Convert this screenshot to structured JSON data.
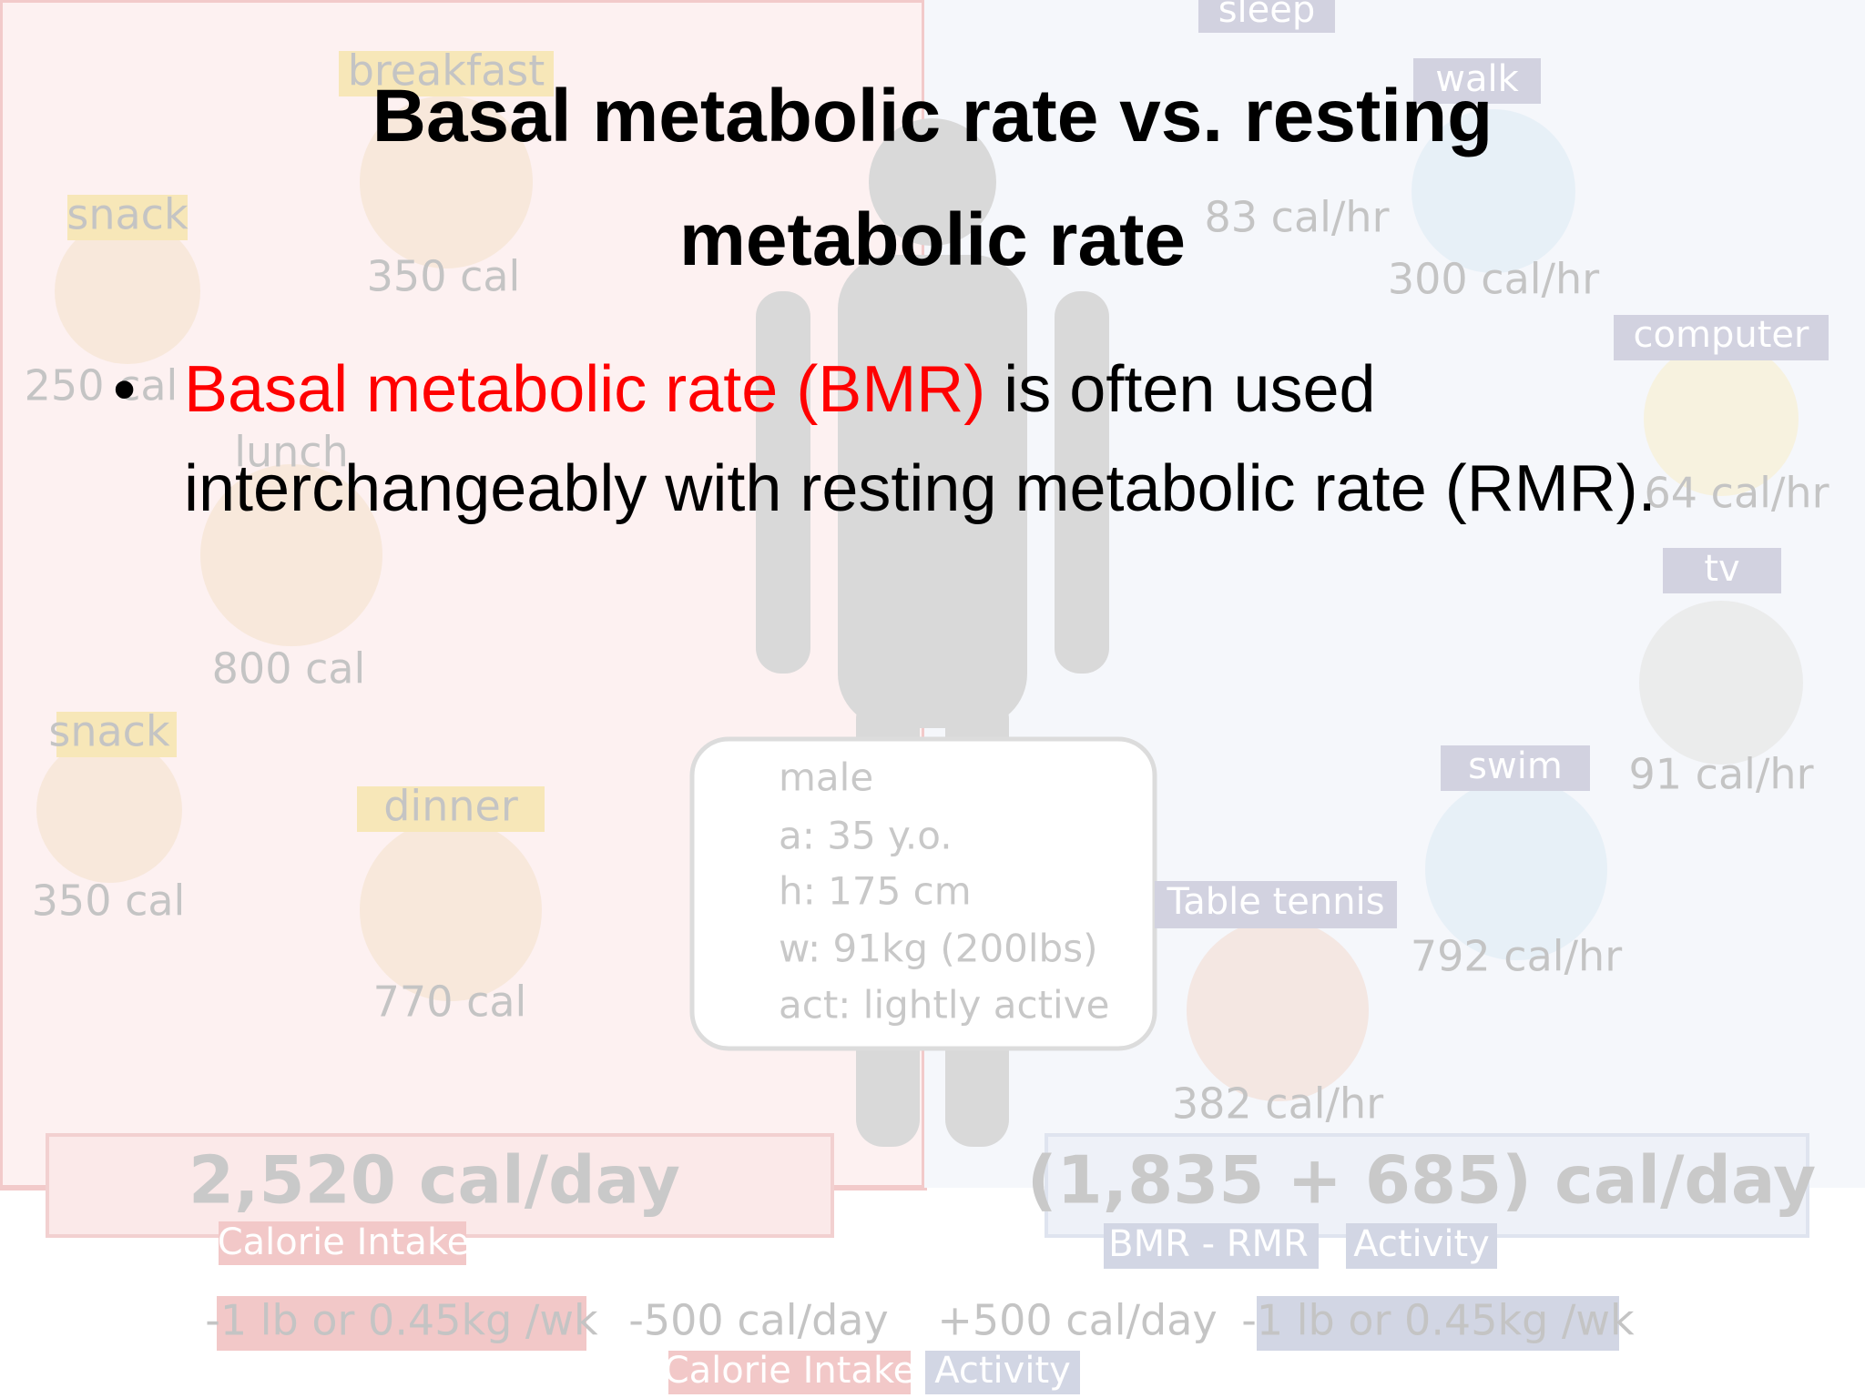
{
  "title": "Basal metabolic rate vs. resting metabolic rate",
  "bullet": {
    "highlight": "Basal metabolic rate (BMR)",
    "text": "is often used interchangeably with resting metabolic rate (RMR)."
  },
  "background": {
    "activities": [
      "sleep",
      "walk",
      "computer",
      "tv",
      "swim",
      "Table tennis"
    ],
    "activity_rates": [
      "83 cal/hr",
      "300 cal/hr",
      "64 cal/hr",
      "91 cal/hr",
      "792 cal/hr",
      "382 cal/hr"
    ],
    "meals": [
      "breakfast",
      "snack",
      "lunch",
      "snack",
      "dinner"
    ],
    "meal_calories": [
      "350 cal",
      "250 cal",
      "800 cal",
      "350 cal",
      "770 cal"
    ],
    "profile": [
      "male",
      "a: 35 y.o.",
      "h: 175 cm",
      "w: 91kg (200lbs)",
      "act: lightly active"
    ],
    "intake_total": "2,520 cal/day",
    "intake_label": "Calorie Intake",
    "expense_total": "(1,835 + 685) cal/day",
    "expense_labels": [
      "BMR - RMR",
      "Activity"
    ],
    "footer": [
      "-1 lb or 0.45kg /wk",
      "-500 cal/day",
      "+500 cal/day",
      "-1 lb or 0.45kg /wk"
    ],
    "footer_labels": [
      "Calorie Intake",
      "Activity"
    ]
  }
}
